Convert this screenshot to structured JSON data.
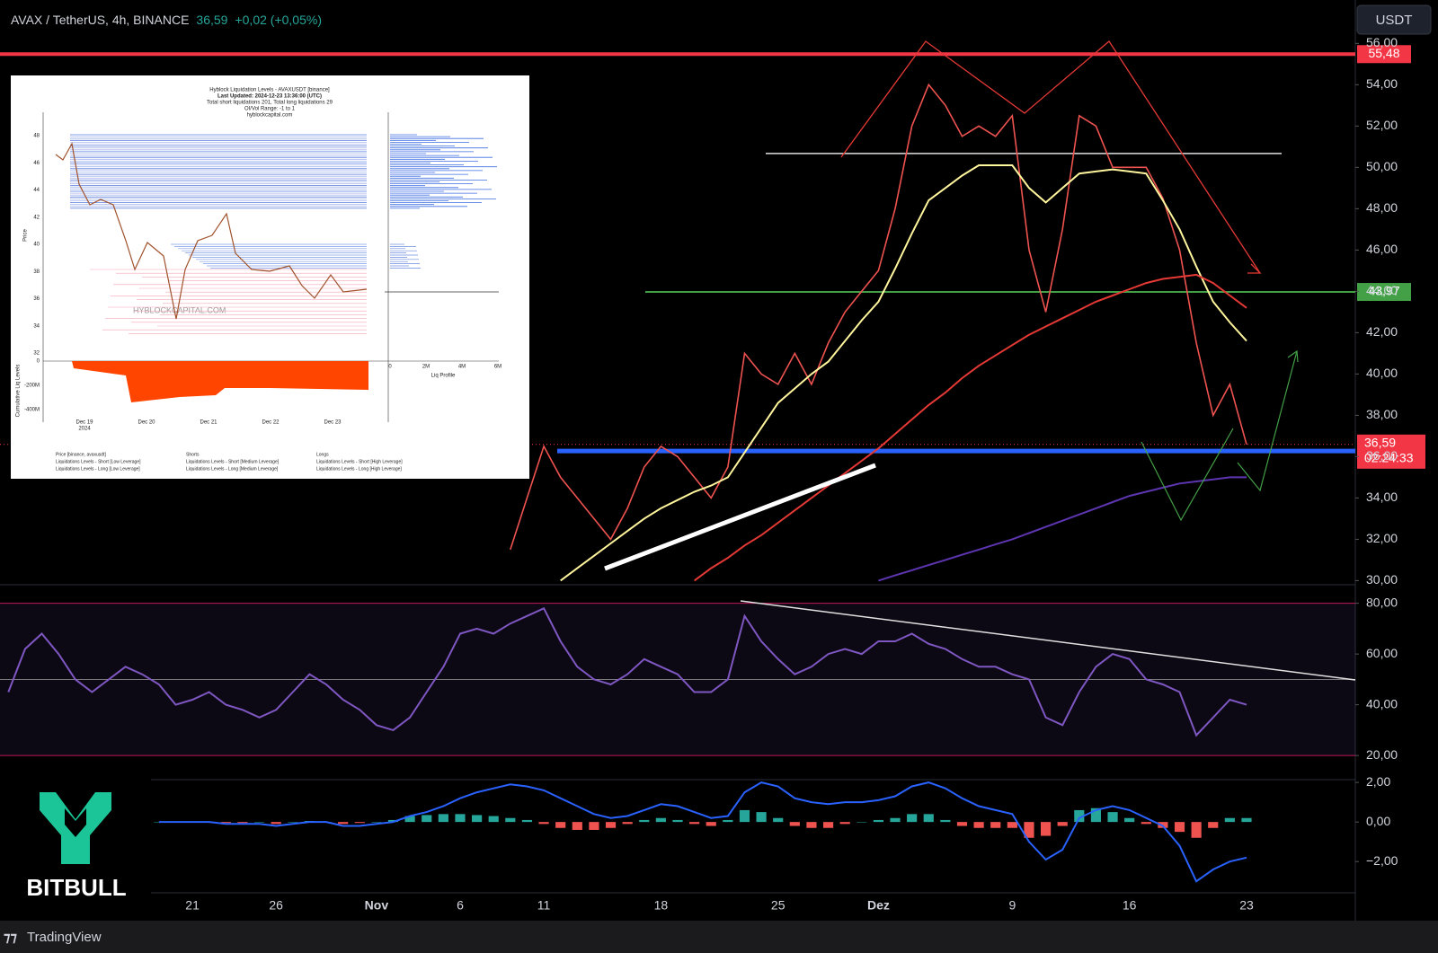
{
  "header": {
    "symbol": "AVAX / TetherUS, 4h, BINANCE",
    "price": "36,59",
    "change": "+0,02 (+0,05%)",
    "currency": "USDT"
  },
  "logo": "BITBULL",
  "footer": "TradingView",
  "inset": {
    "title": "Hyblock Liquidation Levels - AVAXUSDT [binance]",
    "updated": "Last Updated: 2024-12-23 13:36:00 (UTC)",
    "totals": "Total short liquidations 201, Total long liquidations 29",
    "range": "OI/Vol Range: -1 to 1",
    "site": "hyblockcapital.com",
    "watermark": "HYBLOCKCAPITAL.COM",
    "y_label": "Price",
    "price_ticks": [
      "48",
      "46",
      "44",
      "42",
      "40",
      "38",
      "36",
      "34",
      "32"
    ],
    "cum_ticks": [
      "0",
      "-200M",
      "-400M"
    ],
    "cum_label": "Cumulative Liq Levels",
    "dates": [
      "Dec 19",
      "Dec 20",
      "Dec 21",
      "Dec 22",
      "Dec 23"
    ],
    "year": "2024",
    "profile_ticks": [
      "0",
      "2M",
      "4M",
      "6M"
    ],
    "profile_label": "Liq Profile",
    "legend": [
      "Price [binance, avaxusdt]",
      "Liquidations Levels - Short [Low Leverage]",
      "Liquidations Levels - Long [Low Leverage]",
      "Shorts",
      "Liquidations Levels - Short [Medium Leverage]",
      "Liquidations Levels - Long [Medium Leverage]",
      "Longs",
      "Liquidations Levels - Short [High Leverage]",
      "Liquidations Levels - Long [High Leverage]"
    ]
  },
  "chart_data": [
    {
      "type": "line",
      "ylim": [
        29.8,
        58.1
      ],
      "yticks": [
        {
          "value": 30,
          "label": "30,00"
        },
        {
          "value": 32,
          "label": "32,00"
        },
        {
          "value": 34,
          "label": "34,00"
        },
        {
          "value": 36,
          "label": "36,00"
        },
        {
          "value": 38,
          "label": "38,00"
        },
        {
          "value": 40,
          "label": "40,00"
        },
        {
          "value": 42,
          "label": "42,00"
        },
        {
          "value": 44,
          "label": "44,00"
        },
        {
          "value": 46,
          "label": "46,00"
        },
        {
          "value": 48,
          "label": "48,00"
        },
        {
          "value": 50,
          "label": "50,00"
        },
        {
          "value": 52,
          "label": "52,00"
        },
        {
          "value": 54,
          "label": "54,00"
        },
        {
          "value": 56,
          "label": "56,00"
        }
      ],
      "series": [
        {
          "color": "#ef5350",
          "values": [
            null,
            null,
            null,
            null,
            null,
            null,
            null,
            null,
            null,
            null,
            null,
            null,
            null,
            null,
            null,
            null,
            null,
            null,
            null,
            null,
            null,
            null,
            null,
            null,
            null,
            null,
            null,
            null,
            null,
            null,
            31.5,
            34,
            36.5,
            35,
            34,
            33,
            32,
            33.5,
            35.5,
            36.5,
            36,
            35,
            34,
            35.5,
            41,
            40,
            39.5,
            41,
            39.5,
            41.5,
            43,
            44,
            45,
            48,
            52,
            54,
            53,
            51.5,
            52,
            51.5,
            52.5,
            46,
            43,
            47,
            52.5,
            52,
            50,
            50,
            50,
            48.5,
            46,
            41.5,
            38,
            39.5,
            36.59,
            null,
            null,
            null,
            null,
            null,
            null
          ]
        },
        {
          "color": "#fff59d",
          "values": [
            null,
            null,
            null,
            null,
            null,
            null,
            null,
            null,
            null,
            null,
            null,
            null,
            null,
            null,
            null,
            null,
            null,
            null,
            null,
            null,
            null,
            null,
            null,
            null,
            null,
            null,
            null,
            null,
            null,
            null,
            null,
            null,
            null,
            30,
            30.6,
            31.2,
            31.8,
            32.4,
            33,
            33.5,
            33.9,
            34.3,
            34.6,
            35,
            36.2,
            37.4,
            38.6,
            39.3,
            40,
            40.6,
            41.6,
            42.6,
            43.5,
            45.1,
            46.8,
            48.4,
            49,
            49.6,
            50.1,
            50.1,
            50.1,
            49,
            48.3,
            49,
            49.7,
            49.8,
            49.9,
            49.8,
            49.7,
            48.4,
            47,
            45.2,
            43.5,
            42.5,
            41.6,
            null,
            null,
            null,
            null,
            null,
            null
          ]
        },
        {
          "color": "#e53935",
          "values": [
            null,
            null,
            null,
            null,
            null,
            null,
            null,
            null,
            null,
            null,
            null,
            null,
            null,
            null,
            null,
            null,
            null,
            null,
            null,
            null,
            null,
            null,
            null,
            null,
            null,
            null,
            null,
            null,
            null,
            null,
            null,
            null,
            null,
            null,
            null,
            null,
            null,
            null,
            null,
            null,
            null,
            30,
            30.6,
            31.1,
            31.7,
            32.2,
            32.8,
            33.4,
            34,
            34.6,
            35.2,
            35.8,
            36.4,
            37.1,
            37.8,
            38.5,
            39.1,
            39.8,
            40.4,
            40.9,
            41.4,
            41.9,
            42.3,
            42.7,
            43.1,
            43.5,
            43.8,
            44.1,
            44.4,
            44.6,
            44.7,
            44.8,
            44.4,
            43.8,
            43.2,
            null,
            null,
            null,
            null,
            null,
            null
          ]
        },
        {
          "color": "#5e35b1",
          "values": [
            null,
            null,
            null,
            null,
            null,
            null,
            null,
            null,
            null,
            null,
            null,
            null,
            null,
            null,
            null,
            null,
            null,
            null,
            null,
            null,
            null,
            null,
            null,
            null,
            null,
            null,
            null,
            null,
            null,
            null,
            null,
            null,
            null,
            null,
            null,
            null,
            null,
            null,
            null,
            null,
            null,
            null,
            null,
            null,
            null,
            null,
            null,
            null,
            null,
            null,
            null,
            null,
            30,
            30.25,
            30.5,
            30.75,
            31,
            31.25,
            31.5,
            31.75,
            32,
            32.3,
            32.6,
            32.9,
            33.2,
            33.5,
            33.8,
            34.1,
            34.3,
            34.5,
            34.7,
            34.8,
            34.9,
            35,
            35,
            null,
            null,
            null,
            null,
            null,
            null
          ]
        }
      ],
      "levels": [
        {
          "value": 55.48,
          "label": "55,48",
          "color": "#f23645"
        },
        {
          "value": 43.97,
          "label": "43,97",
          "color": "#43a047"
        }
      ],
      "last_price": {
        "value": 36.59,
        "label": "36,59",
        "countdown": "02:24:33",
        "color": "#f23645"
      },
      "hlines": [
        {
          "value": 36.27,
          "color": "#2962ff"
        },
        {
          "value": 50.67,
          "color": "#e0e0e0"
        }
      ]
    },
    {
      "type": "line",
      "ylim": [
        10.5,
        87.3
      ],
      "yticks": [
        {
          "value": 20,
          "label": "20,00"
        },
        {
          "value": 40,
          "label": "40,00"
        },
        {
          "value": 60,
          "label": "60,00"
        },
        {
          "value": 80,
          "label": "80,00"
        }
      ],
      "bands": {
        "upper": 80,
        "lower": 20,
        "middle": 50
      },
      "series": [
        {
          "color": "#7e57c2",
          "values": [
            45,
            62,
            68,
            60,
            50,
            45,
            50,
            55,
            52,
            48,
            40,
            42,
            45,
            40,
            38,
            35,
            38,
            45,
            52,
            48,
            42,
            38,
            32,
            30,
            35,
            45,
            55,
            68,
            70,
            68,
            72,
            75,
            78,
            65,
            55,
            50,
            48,
            52,
            58,
            55,
            52,
            45,
            45,
            50,
            75,
            65,
            58,
            52,
            55,
            60,
            62,
            60,
            65,
            65,
            68,
            64,
            62,
            58,
            55,
            55,
            52,
            50,
            35,
            32,
            45,
            55,
            60,
            58,
            50,
            48,
            45,
            28,
            35,
            42,
            40,
            null,
            null,
            null,
            null,
            null,
            null
          ]
        }
      ]
    },
    {
      "type": "bar",
      "categories": [
        null,
        null,
        null,
        null,
        null,
        null,
        null,
        null,
        null,
        null,
        null,
        "21",
        null,
        null,
        null,
        null,
        "26",
        null,
        null,
        null,
        null,
        null,
        "Nov",
        null,
        null,
        null,
        null,
        "6",
        null,
        null,
        null,
        null,
        "11",
        null,
        null,
        null,
        null,
        null,
        null,
        "18",
        null,
        null,
        null,
        null,
        null,
        null,
        "25",
        null,
        null,
        null,
        null,
        null,
        "Dez",
        null,
        null,
        null,
        null,
        null,
        null,
        null,
        "9",
        null,
        null,
        null,
        null,
        null,
        null,
        "16",
        null,
        null,
        null,
        null,
        null,
        null,
        "23",
        null,
        null,
        null,
        null,
        null,
        null
      ],
      "ylim": [
        -3.58,
        2.14
      ],
      "yticks": [
        {
          "value": -2,
          "label": "−2,00"
        },
        {
          "value": 0,
          "label": "0,00"
        },
        {
          "value": 2,
          "label": "2,00"
        }
      ],
      "colors": {
        "up": "#26a69a",
        "down": "#ef5350"
      },
      "values": [
        null,
        null,
        null,
        null,
        null,
        null,
        null,
        null,
        null,
        0,
        0,
        0,
        0,
        -0.05,
        -0.05,
        0,
        -0.1,
        0,
        0.05,
        0,
        -0.1,
        -0.05,
        0,
        0.1,
        0.3,
        0.35,
        0.4,
        0.4,
        0.35,
        0.3,
        0.2,
        0.1,
        -0.1,
        -0.3,
        -0.4,
        -0.4,
        -0.3,
        -0.1,
        0.1,
        0.2,
        0.1,
        -0.1,
        -0.2,
        0.1,
        0.6,
        0.5,
        0.2,
        -0.2,
        -0.3,
        -0.3,
        -0.1,
        0,
        0.1,
        0.2,
        0.4,
        0.4,
        0.1,
        -0.2,
        -0.3,
        -0.3,
        -0.3,
        -0.8,
        -0.7,
        -0.2,
        0.6,
        0.7,
        0.5,
        0.2,
        -0.1,
        -0.3,
        -0.5,
        -0.8,
        -0.3,
        0.2,
        0.2,
        null,
        null,
        null,
        null,
        null,
        null
      ],
      "series": [
        {
          "color": "#2962ff",
          "values": [
            null,
            null,
            null,
            null,
            null,
            null,
            null,
            null,
            null,
            0,
            0,
            0,
            0,
            -0.1,
            -0.1,
            -0.1,
            -0.2,
            -0.1,
            0,
            0,
            -0.2,
            -0.2,
            -0.1,
            0,
            0.3,
            0.5,
            0.8,
            1.2,
            1.5,
            1.7,
            1.9,
            1.8,
            1.6,
            1.2,
            0.8,
            0.4,
            0.2,
            0.3,
            0.6,
            0.9,
            0.8,
            0.5,
            0.2,
            0.3,
            1.5,
            2.0,
            1.8,
            1.2,
            1.0,
            0.9,
            1.0,
            1.0,
            1.1,
            1.3,
            1.8,
            2.0,
            1.7,
            1.2,
            0.8,
            0.6,
            0.4,
            -1.0,
            -1.9,
            -1.4,
            0.2,
            0.6,
            0.8,
            0.6,
            0.2,
            -0.2,
            -1.2,
            -3.0,
            -2.4,
            -2.0,
            -1.8,
            null,
            null,
            null,
            null,
            null,
            null
          ]
        }
      ]
    }
  ]
}
